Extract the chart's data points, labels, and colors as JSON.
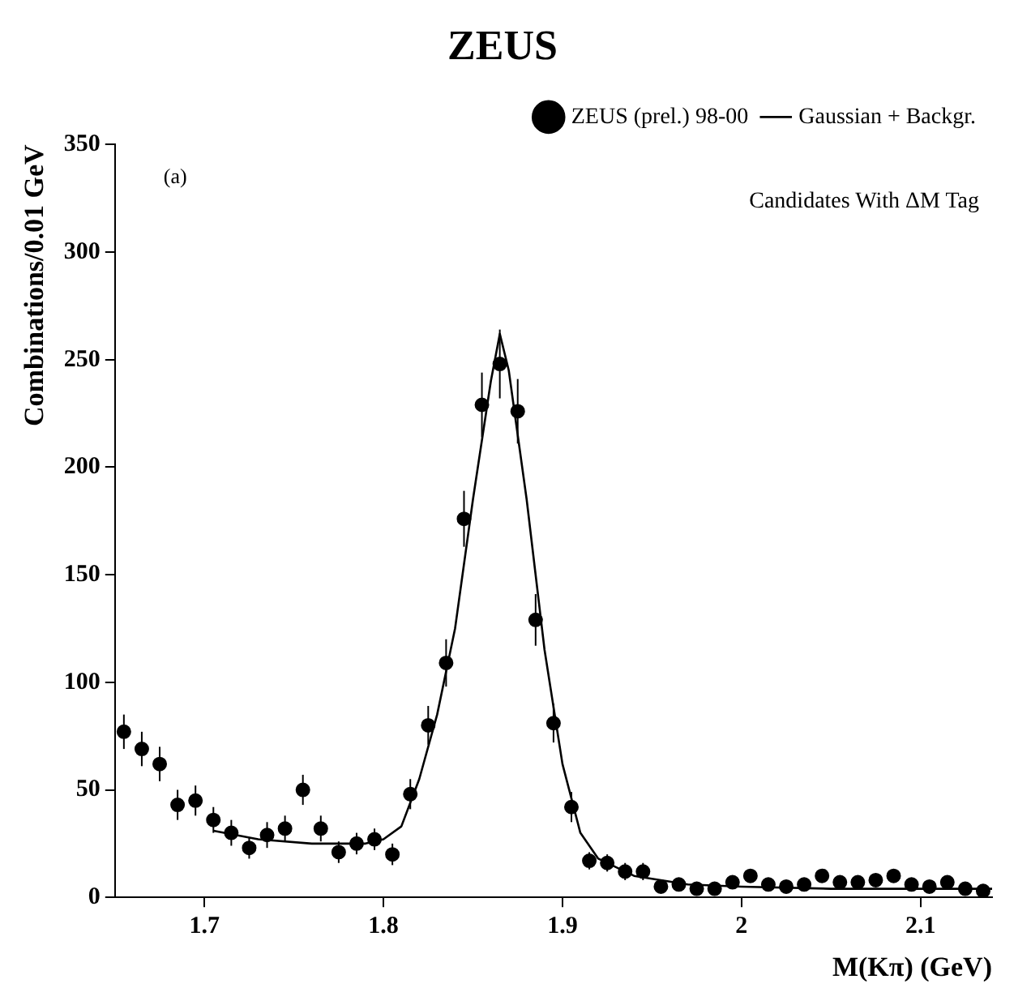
{
  "chart_data": {
    "type": "scatter",
    "title": "ZEUS",
    "xlabel": "M(Kπ) (GeV)",
    "ylabel": "Combinations/0.01 GeV",
    "annotations": [
      "(a)",
      "Candidates With ΔM Tag"
    ],
    "xlim": [
      1.65,
      2.14
    ],
    "xticks": [
      1.7,
      1.8,
      1.9,
      2,
      2.1
    ],
    "ylim": [
      0,
      350
    ],
    "yticks": [
      0,
      50,
      100,
      150,
      200,
      250,
      300,
      350
    ],
    "legend": "top right",
    "marker": "circle",
    "series": [
      {
        "name": "ZEUS (prel.) 98-00",
        "color": "#000000",
        "x": [
          1.655,
          1.665,
          1.675,
          1.685,
          1.695,
          1.705,
          1.715,
          1.725,
          1.735,
          1.745,
          1.755,
          1.765,
          1.775,
          1.785,
          1.795,
          1.805,
          1.815,
          1.825,
          1.835,
          1.845,
          1.855,
          1.865,
          1.875,
          1.885,
          1.895,
          1.905,
          1.915,
          1.925,
          1.935,
          1.945,
          1.955,
          1.965,
          1.975,
          1.985,
          1.995,
          2.005,
          2.015,
          2.025,
          2.035,
          2.045,
          2.055,
          2.065,
          2.075,
          2.085,
          2.095,
          2.105,
          2.115,
          2.125,
          2.135
        ],
        "values": [
          77,
          69,
          62,
          43,
          45,
          36,
          30,
          23,
          29,
          32,
          50,
          32,
          21,
          25,
          27,
          20,
          48,
          80,
          109,
          176,
          229,
          248,
          226,
          129,
          81,
          42,
          17,
          16,
          12,
          12,
          5,
          6,
          4,
          4,
          7,
          10,
          6,
          5,
          6,
          10,
          7,
          7,
          8,
          10,
          6,
          5,
          7,
          4,
          3
        ],
        "errors": [
          8,
          8,
          8,
          7,
          7,
          6,
          6,
          5,
          6,
          6,
          7,
          6,
          5,
          5,
          5,
          5,
          7,
          9,
          11,
          13,
          15,
          16,
          15,
          12,
          9,
          7,
          4,
          4,
          4,
          4,
          2,
          3,
          2,
          2,
          3,
          3,
          3,
          2,
          3,
          3,
          3,
          3,
          3,
          3,
          3,
          2,
          3,
          2,
          2
        ]
      },
      {
        "name": "Gaussian + Backgr.",
        "type": "line",
        "marker": "none",
        "color": "#000000",
        "x": [
          1.705,
          1.73,
          1.76,
          1.79,
          1.8,
          1.81,
          1.82,
          1.83,
          1.84,
          1.85,
          1.86,
          1.865,
          1.87,
          1.88,
          1.89,
          1.9,
          1.91,
          1.92,
          1.94,
          1.97,
          2.0,
          2.05,
          2.1,
          2.14
        ],
        "values": [
          31,
          27,
          25,
          25,
          27,
          33,
          55,
          85,
          125,
          185,
          240,
          262,
          245,
          185,
          115,
          62,
          30,
          18,
          10,
          6,
          5,
          4,
          4,
          4
        ]
      }
    ]
  }
}
